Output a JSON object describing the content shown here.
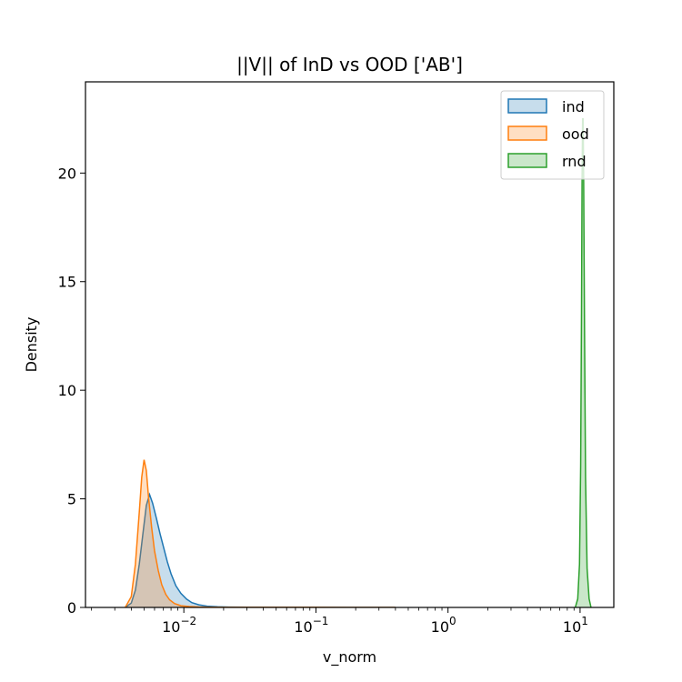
{
  "chart_data": {
    "type": "area",
    "title": "||V|| of InD vs OOD ['AB']",
    "xlabel": "v_norm",
    "ylabel": "Density",
    "xscale": "log",
    "xlim": [
      0.0018,
      18
    ],
    "ylim": [
      0,
      24.2
    ],
    "grid": false,
    "legend_position": "top-right",
    "x_major_ticks": [
      {
        "value": 0.01,
        "base": "10",
        "exp": "−2"
      },
      {
        "value": 0.1,
        "base": "10",
        "exp": "−1"
      },
      {
        "value": 1,
        "base": "10",
        "exp": "0"
      },
      {
        "value": 10,
        "base": "10",
        "exp": "1"
      }
    ],
    "y_ticks": [
      {
        "value": 0,
        "label": "0"
      },
      {
        "value": 5,
        "label": "5"
      },
      {
        "value": 10,
        "label": "10"
      },
      {
        "value": 15,
        "label": "15"
      },
      {
        "value": 20,
        "label": "20"
      }
    ],
    "series": [
      {
        "name": "ind",
        "color": "#1f77b4",
        "x": [
          0.0036,
          0.004,
          0.0043,
          0.0046,
          0.0049,
          0.0052,
          0.0055,
          0.0058,
          0.0062,
          0.0066,
          0.007,
          0.0075,
          0.008,
          0.0087,
          0.0095,
          0.0105,
          0.0115,
          0.013,
          0.015,
          0.018,
          0.022,
          0.03,
          0.05,
          0.1,
          0.2,
          0.4
        ],
        "y": [
          0,
          0.2,
          0.8,
          2.0,
          3.4,
          4.7,
          5.2,
          4.8,
          4.1,
          3.4,
          2.8,
          2.1,
          1.55,
          1.0,
          0.65,
          0.38,
          0.22,
          0.12,
          0.06,
          0.03,
          0.015,
          0.008,
          0.004,
          0.003,
          0.002,
          0
        ]
      },
      {
        "name": "ood",
        "color": "#ff7f0e",
        "x": [
          0.0036,
          0.004,
          0.0043,
          0.0046,
          0.0048,
          0.005,
          0.0052,
          0.0054,
          0.0057,
          0.006,
          0.0064,
          0.0068,
          0.0073,
          0.0078,
          0.0085,
          0.0095,
          0.011,
          0.013,
          0.016,
          0.02,
          0.03,
          0.05,
          0.1,
          0.2,
          0.4
        ],
        "y": [
          0,
          0.5,
          2.0,
          4.4,
          6.0,
          6.8,
          6.3,
          5.1,
          3.7,
          2.6,
          1.7,
          1.05,
          0.6,
          0.35,
          0.18,
          0.08,
          0.04,
          0.02,
          0.01,
          0.006,
          0.004,
          0.003,
          0.003,
          0.002,
          0
        ]
      },
      {
        "name": "rnd",
        "color": "#2ca02c",
        "x": [
          9.2,
          9.6,
          9.9,
          10.1,
          10.25,
          10.35,
          10.45,
          10.55,
          10.65,
          10.8,
          11.0,
          11.3,
          11.7,
          12.1
        ],
        "y": [
          0,
          0.4,
          2.0,
          6.5,
          13.5,
          19.5,
          22.5,
          22.5,
          19.5,
          13.0,
          6.0,
          1.8,
          0.4,
          0
        ]
      }
    ]
  }
}
